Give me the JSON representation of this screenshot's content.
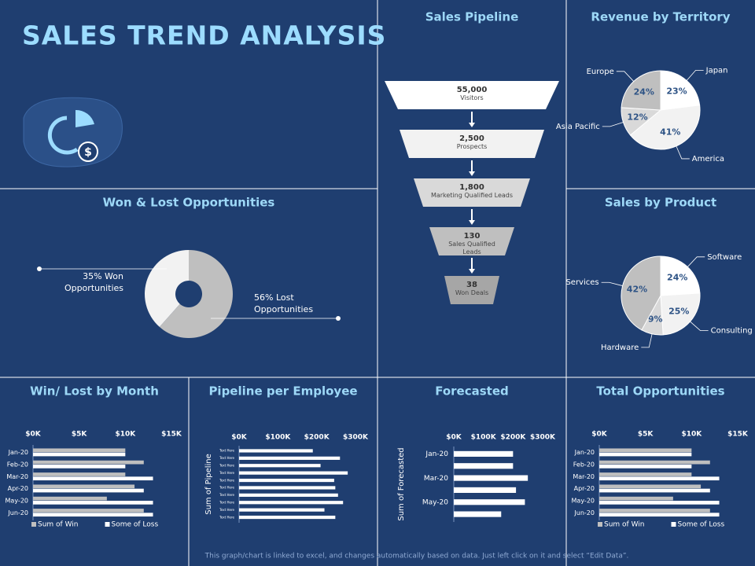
{
  "header": {
    "title": "SALES TREND ANALYSIS"
  },
  "footer": "This graph/chart is linked to excel, and changes automatically based on data. Just left click on it and select “Edit Data”.",
  "chart_data": [
    {
      "type": "funnel",
      "title": "Sales Pipeline",
      "categories": [
        "Visitors",
        "Prospects",
        "Marketing Qualified Leads",
        "Sales Qualified Leads",
        "Won Deals"
      ],
      "values": [
        55000,
        2500,
        1800,
        130,
        38
      ],
      "value_labels": [
        "55,000",
        "2,500",
        "1,800",
        "130",
        "38"
      ],
      "colors": [
        "#ffffff",
        "#f2f2f2",
        "#d9d9d9",
        "#bfbfbf",
        "#a6a6a6"
      ]
    },
    {
      "type": "pie",
      "title": "Revenue by Territory",
      "categories": [
        "Japan",
        "America",
        "Asia Pacific",
        "Europe"
      ],
      "values": [
        23,
        41,
        12,
        24
      ],
      "value_labels": [
        "23%",
        "41%",
        "12%",
        "24%"
      ],
      "colors": [
        "#ffffff",
        "#f2f2f2",
        "#d9d9d9",
        "#bfbfbf"
      ]
    },
    {
      "type": "donut",
      "title": "Won & Lost Opportunities",
      "labels": [
        "35% Won Opportunities",
        "56% Lost Opportunities"
      ],
      "values": [
        35,
        56
      ],
      "colors": [
        "#f2f2f2",
        "#bfbfbf"
      ]
    },
    {
      "type": "hbar",
      "title": "Win/ Lost by Month",
      "categories": [
        "Jan-20",
        "Feb-20",
        "Mar-20",
        "Apr-20",
        "May-20",
        "Jun-20"
      ],
      "series": [
        {
          "name": "Sum of Win",
          "color": "#bfbfbf",
          "values": [
            10000,
            12000,
            10000,
            11000,
            8000,
            12000
          ]
        },
        {
          "name": "Some of Loss",
          "color": "#ffffff",
          "values": [
            10000,
            10000,
            13000,
            12000,
            13000,
            13000
          ]
        }
      ],
      "xlim": [
        0,
        15000
      ],
      "xticks": [
        {
          "value": 0,
          "label": "$0K"
        },
        {
          "value": 5000,
          "label": "$5K"
        },
        {
          "value": 10000,
          "label": "$10K"
        },
        {
          "value": 15000,
          "label": "$15K"
        }
      ],
      "grid": false,
      "legend": "bottom"
    },
    {
      "type": "hbar",
      "title": "Pipeline per Employee",
      "y_label": "Sum of Pipeline",
      "categories": [
        "Text Here",
        "Text Here",
        "Text Here",
        "Text Here",
        "Text Here",
        "Text Here",
        "Text Here",
        "Text Here",
        "Text Here",
        "Text Here"
      ],
      "series": [
        {
          "color": "#ffffff",
          "values": [
            190000,
            260000,
            210000,
            280000,
            245000,
            248000,
            255000,
            268000,
            220000,
            248000
          ]
        }
      ],
      "xlim": [
        0,
        300000
      ],
      "xticks": [
        {
          "value": 0,
          "label": "$0K"
        },
        {
          "value": 100000,
          "label": "$100K"
        },
        {
          "value": 200000,
          "label": "$200K"
        },
        {
          "value": 300000,
          "label": "$300K"
        }
      ],
      "grid": false
    },
    {
      "type": "hbar",
      "title": "Forecasted",
      "y_label": "Sum of Forecasted",
      "categories": [
        "Jan-20",
        null,
        "Mar-20",
        null,
        "May-20",
        null
      ],
      "series": [
        {
          "color": "#ffffff",
          "values": [
            200000,
            200000,
            250000,
            210000,
            240000,
            160000
          ]
        }
      ],
      "xlim": [
        0,
        300000
      ],
      "xticks": [
        {
          "value": 0,
          "label": "$0K"
        },
        {
          "value": 100000,
          "label": "$100K"
        },
        {
          "value": 200000,
          "label": "$200K"
        },
        {
          "value": 300000,
          "label": "$300K"
        }
      ],
      "grid": false
    },
    {
      "type": "pie",
      "title": "Sales by Product",
      "categories": [
        "Software",
        "Consulting",
        "Hardware",
        "Services"
      ],
      "values": [
        24,
        25,
        9,
        42
      ],
      "value_labels": [
        "24%",
        "25%",
        "9%",
        "42%"
      ],
      "colors": [
        "#ffffff",
        "#f2f2f2",
        "#d9d9d9",
        "#bfbfbf"
      ]
    },
    {
      "type": "hbar",
      "title": "Total Opportunities",
      "categories": [
        "Jan-20",
        "Feb-20",
        "Mar-20",
        "Apr-20",
        "May-20",
        "Jun-20"
      ],
      "series": [
        {
          "name": "Sum of Win",
          "color": "#bfbfbf",
          "values": [
            10000,
            12000,
            10000,
            11000,
            8000,
            12000
          ]
        },
        {
          "name": "Some of Loss",
          "color": "#ffffff",
          "values": [
            10000,
            10000,
            13000,
            12000,
            13000,
            13000
          ]
        }
      ],
      "xlim": [
        0,
        15000
      ],
      "xticks": [
        {
          "value": 0,
          "label": "$0K"
        },
        {
          "value": 5000,
          "label": "$5K"
        },
        {
          "value": 10000,
          "label": "$10K"
        },
        {
          "value": 15000,
          "label": "$15K"
        }
      ],
      "grid": false,
      "legend": "bottom"
    }
  ]
}
